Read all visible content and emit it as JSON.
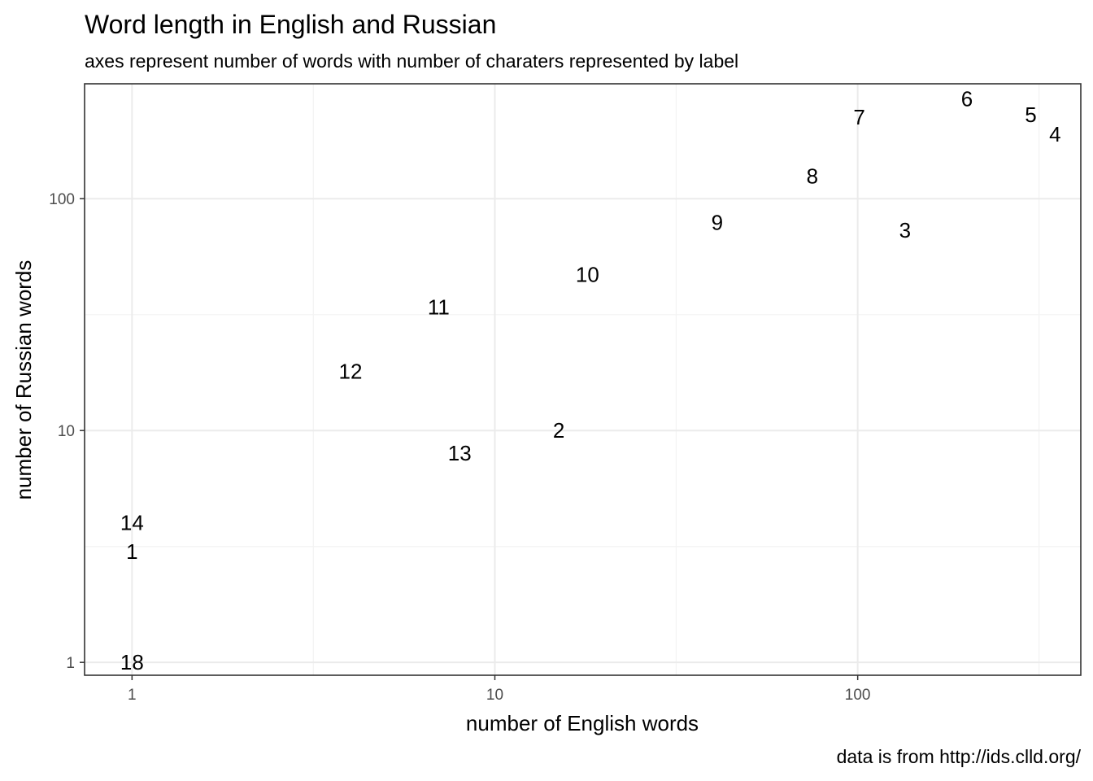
{
  "chart_data": {
    "type": "scatter",
    "title": "Word length in English and Russian",
    "subtitle": "axes represent number of words with number of charaters represented by label",
    "xlabel": "number of English words",
    "ylabel": "number of Russian words",
    "caption": "data is from http://ids.clld.org/",
    "x_scale": "log10",
    "y_scale": "log10",
    "xlim": [
      0.74,
      412
    ],
    "ylim": [
      0.88,
      313
    ],
    "x_ticks": [
      1,
      10,
      100
    ],
    "x_tick_labels": [
      "1",
      "10",
      "100"
    ],
    "y_ticks": [
      1,
      10,
      100
    ],
    "y_tick_labels": [
      "1",
      "10",
      "100"
    ],
    "x_minor_ticks": [
      3.16,
      31.6,
      316
    ],
    "y_minor_ticks": [
      3.16,
      31.6
    ],
    "grid": true,
    "points": [
      {
        "label": "1",
        "x": 1,
        "y": 3
      },
      {
        "label": "2",
        "x": 15,
        "y": 10
      },
      {
        "label": "3",
        "x": 135,
        "y": 73
      },
      {
        "label": "4",
        "x": 350,
        "y": 190
      },
      {
        "label": "5",
        "x": 300,
        "y": 230
      },
      {
        "label": "6",
        "x": 200,
        "y": 270
      },
      {
        "label": "7",
        "x": 101,
        "y": 225
      },
      {
        "label": "8",
        "x": 75,
        "y": 125
      },
      {
        "label": "9",
        "x": 41,
        "y": 79
      },
      {
        "label": "10",
        "x": 18,
        "y": 47
      },
      {
        "label": "11",
        "x": 7,
        "y": 34
      },
      {
        "label": "12",
        "x": 4,
        "y": 18
      },
      {
        "label": "13",
        "x": 8,
        "y": 8
      },
      {
        "label": "14",
        "x": 1,
        "y": 4
      },
      {
        "label": "18",
        "x": 1,
        "y": 1
      }
    ]
  }
}
